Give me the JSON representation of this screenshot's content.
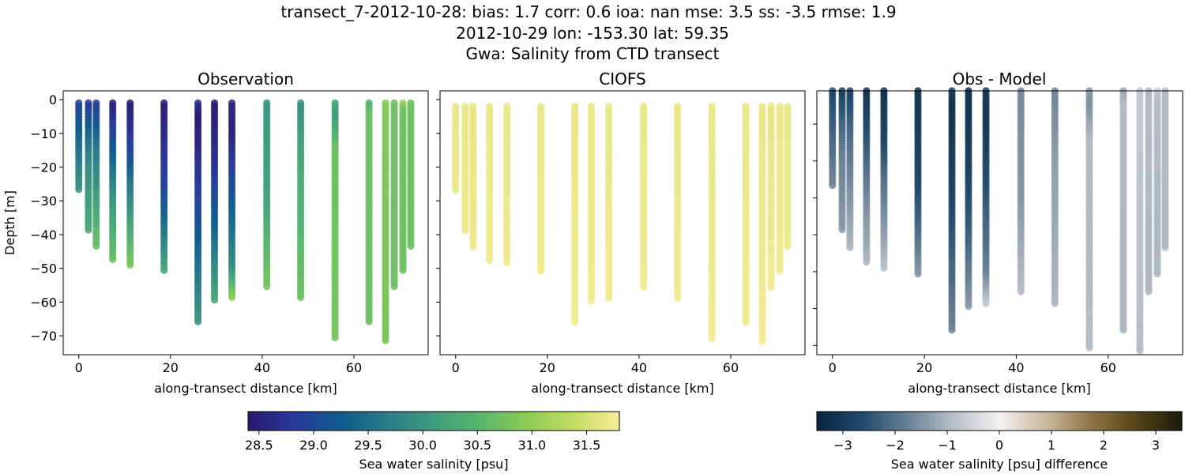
{
  "title_lines": [
    "transect_7-2012-10-28: bias: 1.7  corr: 0.6  ioa: nan  mse: 3.5  ss: -3.5  rmse: 1.9",
    "2012-10-29 lon: -153.30 lat: 59.35",
    "Gwa: Salinity from CTD transect"
  ],
  "chart_data": [
    {
      "type": "scatter",
      "title": "Observation",
      "xlabel": "along-transect distance [km]",
      "ylabel": "Depth [m]",
      "xlim": [
        -3.4,
        76.2
      ],
      "ylim": [
        -75.6,
        2.6
      ],
      "xticks": [
        0,
        20,
        40,
        60
      ],
      "yticks": [
        0,
        -10,
        -20,
        -30,
        -40,
        -50,
        -60,
        -70
      ],
      "colorbar": {
        "label": "Sea water salinity [psu]",
        "range": [
          28.4,
          31.8
        ],
        "ticks": [
          "28.5",
          "29.0",
          "29.5",
          "30.0",
          "30.5",
          "31.0",
          "31.5"
        ]
      },
      "stations": [
        {
          "x": 0,
          "depth": 27,
          "profile": [
            [
              0,
              28.9
            ],
            [
              10,
              29.3
            ],
            [
              27,
              30.0
            ]
          ]
        },
        {
          "x": 2.1,
          "depth": 39,
          "profile": [
            [
              0,
              28.7
            ],
            [
              10,
              29.4
            ],
            [
              20,
              29.9
            ],
            [
              39,
              30.3
            ]
          ]
        },
        {
          "x": 3.8,
          "depth": 44,
          "profile": [
            [
              0,
              28.8
            ],
            [
              15,
              29.6
            ],
            [
              44,
              30.7
            ]
          ]
        },
        {
          "x": 7.4,
          "depth": 48,
          "profile": [
            [
              0,
              28.4
            ],
            [
              15,
              29.2
            ],
            [
              30,
              30.0
            ],
            [
              48,
              30.7
            ]
          ]
        },
        {
          "x": 11.2,
          "depth": 49,
          "profile": [
            [
              0,
              28.4
            ],
            [
              15,
              28.9
            ],
            [
              25,
              29.6
            ],
            [
              49,
              30.8
            ]
          ]
        },
        {
          "x": 18.6,
          "depth": 51,
          "profile": [
            [
              0,
              28.4
            ],
            [
              25,
              28.9
            ],
            [
              40,
              29.6
            ],
            [
              51,
              30.3
            ]
          ]
        },
        {
          "x": 26.0,
          "depth": 66,
          "profile": [
            [
              0,
              28.8
            ],
            [
              5,
              28.4
            ],
            [
              30,
              28.9
            ],
            [
              50,
              29.5
            ],
            [
              66,
              30.0
            ]
          ]
        },
        {
          "x": 29.6,
          "depth": 60,
          "profile": [
            [
              0,
              28.4
            ],
            [
              20,
              28.7
            ],
            [
              40,
              29.4
            ],
            [
              60,
              30.3
            ]
          ]
        },
        {
          "x": 33.4,
          "depth": 59,
          "profile": [
            [
              0,
              28.6
            ],
            [
              10,
              28.5
            ],
            [
              30,
              29.2
            ],
            [
              50,
              29.9
            ],
            [
              59,
              31.0
            ]
          ]
        },
        {
          "x": 41.0,
          "depth": 56,
          "profile": [
            [
              0,
              30.0
            ],
            [
              30,
              30.2
            ],
            [
              56,
              30.8
            ]
          ]
        },
        {
          "x": 48.4,
          "depth": 59,
          "profile": [
            [
              0,
              29.9
            ],
            [
              20,
              30.3
            ],
            [
              59,
              30.7
            ]
          ]
        },
        {
          "x": 55.9,
          "depth": 71,
          "profile": [
            [
              0,
              30.3
            ],
            [
              5,
              30.1
            ],
            [
              15,
              30.7
            ],
            [
              71,
              30.8
            ]
          ]
        },
        {
          "x": 63.3,
          "depth": 66,
          "profile": [
            [
              0,
              30.3
            ],
            [
              5,
              30.7
            ],
            [
              66,
              30.7
            ]
          ]
        },
        {
          "x": 66.9,
          "depth": 72,
          "profile": [
            [
              0,
              30.9
            ],
            [
              72,
              30.8
            ]
          ]
        },
        {
          "x": 68.8,
          "depth": 56,
          "profile": [
            [
              0,
              30.7
            ],
            [
              56,
              30.7
            ]
          ]
        },
        {
          "x": 70.7,
          "depth": 51,
          "profile": [
            [
              0,
              31.3
            ],
            [
              3,
              30.7
            ],
            [
              51,
              30.7
            ]
          ]
        },
        {
          "x": 72.4,
          "depth": 44,
          "profile": [
            [
              0,
              30.7
            ],
            [
              44,
              30.7
            ]
          ]
        }
      ]
    },
    {
      "type": "scatter",
      "title": "CIOFS",
      "xlabel": "along-transect distance [km]",
      "xlim": [
        -3.4,
        76.2
      ],
      "ylim": [
        -75.6,
        2.6
      ],
      "xticks": [
        0,
        20,
        40,
        60
      ],
      "model_profile": [
        [
          0,
          31.65
        ],
        [
          75,
          31.75
        ]
      ]
    },
    {
      "type": "scatter",
      "title": "Obs - Model",
      "xlabel": "along-transect distance [km]",
      "xlim": [
        -3.4,
        76.2
      ],
      "ylim": [
        -72.5,
        -1
      ],
      "xticks": [
        0,
        20,
        40,
        60
      ],
      "colorbar": {
        "label": "Sea water salinity [psu] difference",
        "range": [
          -3.5,
          3.5
        ],
        "ticks": [
          "−3",
          "−2",
          "−1",
          "0",
          "1",
          "2",
          "3"
        ]
      }
    }
  ],
  "colormaps": {
    "salinity": [
      "#2a186c",
      "#283a9c",
      "#0f5a8c",
      "#2a7c89",
      "#3e9b7d",
      "#58b66d",
      "#8acb55",
      "#c0dc62",
      "#fbed9a"
    ],
    "difference": [
      "#08243f",
      "#1f4a6c",
      "#6a8196",
      "#b9c0c8",
      "#f4f1ef",
      "#cbbb9f",
      "#907546",
      "#544417",
      "#1b1c0c"
    ]
  }
}
